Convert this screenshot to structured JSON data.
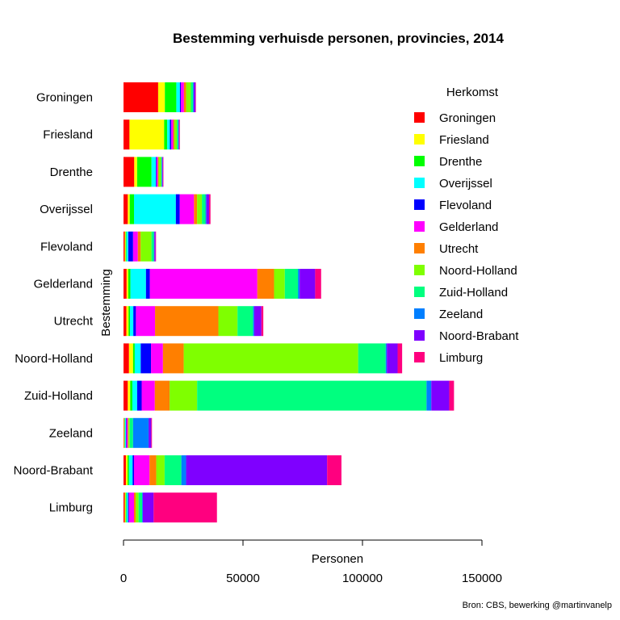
{
  "chart_data": {
    "type": "bar",
    "orientation": "horizontal",
    "stacked": true,
    "title": "Bestemming verhuisde personen, provincies, 2014",
    "xlabel": "Personen",
    "ylabel": "Bestemming",
    "xlim": [
      0,
      150000
    ],
    "xticks": [
      0,
      50000,
      100000,
      150000
    ],
    "legend_title": "Herkomst",
    "legend_position": "top-right",
    "grid": false,
    "source": "Bron: CBS, bewerking @martinvanelp",
    "categories": [
      "Groningen",
      "Friesland",
      "Drenthe",
      "Overijssel",
      "Flevoland",
      "Gelderland",
      "Utrecht",
      "Noord-Holland",
      "Zuid-Holland",
      "Zeeland",
      "Noord-Brabant",
      "Limburg"
    ],
    "series": [
      {
        "name": "Groningen",
        "color": "#FF0000",
        "values": [
          14500,
          2500,
          4500,
          1800,
          500,
          1300,
          1200,
          2300,
          1800,
          200,
          1000,
          500
        ]
      },
      {
        "name": "Friesland",
        "color": "#FFFF00",
        "values": [
          2800,
          14500,
          1200,
          800,
          400,
          700,
          900,
          1700,
          1000,
          200,
          700,
          400
        ]
      },
      {
        "name": "Drenthe",
        "color": "#00FF00",
        "values": [
          4800,
          1300,
          6000,
          1800,
          300,
          900,
          600,
          700,
          900,
          200,
          600,
          300
        ]
      },
      {
        "name": "Overijssel",
        "color": "#00FFFF",
        "values": [
          1500,
          1100,
          1800,
          17500,
          800,
          6500,
          1400,
          2500,
          2000,
          400,
          1500,
          700
        ]
      },
      {
        "name": "Flevoland",
        "color": "#0000FF",
        "values": [
          400,
          600,
          300,
          1600,
          2000,
          1600,
          1100,
          4300,
          1900,
          200,
          600,
          300
        ]
      },
      {
        "name": "Gelderland",
        "color": "#FF00FF",
        "values": [
          1300,
          800,
          600,
          6000,
          2000,
          45000,
          8000,
          5000,
          5500,
          600,
          6500,
          2200
        ]
      },
      {
        "name": "Utrecht",
        "color": "#FF7F00",
        "values": [
          900,
          500,
          300,
          1300,
          1200,
          7000,
          26500,
          8700,
          6200,
          300,
          2800,
          700
        ]
      },
      {
        "name": "Noord-Holland",
        "color": "#7FFF00",
        "values": [
          2000,
          1000,
          1000,
          2000,
          4500,
          4500,
          8000,
          73000,
          11500,
          500,
          3500,
          1200
        ]
      },
      {
        "name": "Zuid-Holland",
        "color": "#00FF7F",
        "values": [
          900,
          600,
          300,
          1500,
          1000,
          5500,
          6500,
          11500,
          96000,
          1400,
          7000,
          1500
        ]
      },
      {
        "name": "Zeeland",
        "color": "#007FFF",
        "values": [
          300,
          200,
          200,
          400,
          200,
          700,
          500,
          500,
          2000,
          6500,
          2000,
          300
        ]
      },
      {
        "name": "Noord-Brabant",
        "color": "#7F00FF",
        "values": [
          700,
          300,
          300,
          1100,
          500,
          6500,
          3000,
          4500,
          7500,
          1100,
          59000,
          4500
        ]
      },
      {
        "name": "Limburg",
        "color": "#FF007F",
        "values": [
          200,
          200,
          200,
          600,
          200,
          2500,
          800,
          1900,
          2000,
          300,
          6000,
          26500
        ]
      }
    ]
  }
}
